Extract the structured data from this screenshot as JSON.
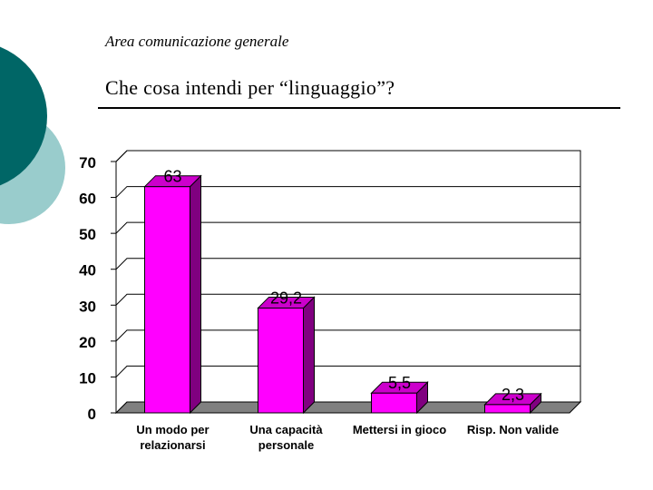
{
  "slide": {
    "section": "Area comunicazione generale",
    "question": "Che cosa intendi per “linguaggio”?"
  },
  "colors": {
    "bar_front": "#ff00ff",
    "bar_side": "#800080",
    "bar_top": "#cc00cc",
    "floor": "#808080",
    "deco_dark": "#006666",
    "deco_light": "#99cccc"
  },
  "chart_data": {
    "type": "bar",
    "title": "",
    "xlabel": "",
    "ylabel": "",
    "categories": [
      [
        "Un modo per",
        "relazionarsi"
      ],
      [
        "Una capacità",
        "personale"
      ],
      [
        "Mettersi in gioco"
      ],
      [
        "Risp. Non valide"
      ]
    ],
    "values": [
      63,
      29.2,
      5.5,
      2.3
    ],
    "value_labels": [
      "63",
      "29,2",
      "5,5",
      "2,3"
    ],
    "ylim": [
      0,
      70
    ],
    "yticks": [
      0,
      10,
      20,
      30,
      40,
      50,
      60,
      70
    ],
    "grid": true,
    "legend": "none",
    "style": "3d"
  }
}
